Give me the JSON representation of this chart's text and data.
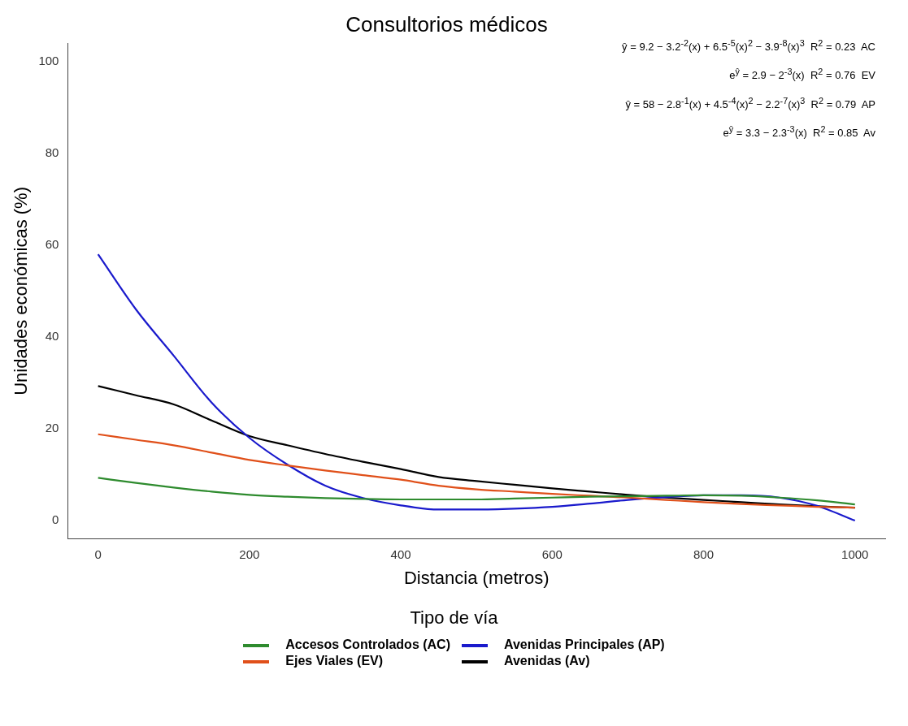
{
  "chart_data": {
    "type": "line",
    "title": "Consultorios médicos",
    "xlabel": "Distancia (metros)",
    "ylabel": "Unidades económicas (%)",
    "legend_title": "Tipo de vía",
    "legend": "bottom",
    "grid": false,
    "marker": "none",
    "line_style": "solid",
    "x": [
      0,
      50,
      100,
      150,
      200,
      250,
      300,
      350,
      400,
      450,
      500,
      550,
      600,
      650,
      700,
      750,
      800,
      850,
      900,
      950,
      1000
    ],
    "xlim": [
      -40,
      1040
    ],
    "xticks": [
      0,
      200,
      400,
      600,
      800,
      1000
    ],
    "ylim": [
      -4,
      104
    ],
    "yticks": [
      0,
      20,
      40,
      60,
      80,
      100
    ],
    "series": [
      {
        "name": "Accesos Controlados (AC)",
        "color": "#2e8b2e",
        "values": [
          9.3,
          8.2,
          7.2,
          6.3,
          5.6,
          5.2,
          4.9,
          4.7,
          4.6,
          4.6,
          4.6,
          4.8,
          5,
          5.2,
          5.3,
          5.4,
          5.5,
          5.4,
          5,
          4.4,
          3.5
        ]
      },
      {
        "name": "Ejes Viales (EV)",
        "color": "#e0501a",
        "values": [
          18.8,
          17.6,
          16.4,
          14.8,
          13.2,
          12,
          10.9,
          9.9,
          8.9,
          7.6,
          6.8,
          6.3,
          5.8,
          5.4,
          5,
          4.5,
          4,
          3.6,
          3.3,
          3,
          2.8
        ]
      },
      {
        "name": "Avenidas Principales (AP)",
        "color": "#1a1acc",
        "values": [
          58,
          46,
          35.9,
          25.7,
          18,
          12.2,
          7.6,
          4.9,
          3.3,
          2.4,
          2.4,
          2.6,
          3,
          3.7,
          4.5,
          5.1,
          5.5,
          5.5,
          5,
          3.2,
          0
        ]
      },
      {
        "name": "Avenidas (Av)",
        "color": "#000000",
        "values": [
          29.3,
          27.3,
          25.3,
          21.8,
          18.4,
          16.4,
          14.5,
          12.8,
          11.2,
          9.5,
          8.6,
          7.8,
          7,
          6.3,
          5.6,
          5,
          4.5,
          4,
          3.5,
          3.1,
          2.8
        ]
      }
    ],
    "annotations": [
      "ŷ = 9.2 − 3.2$^{-2}$(x) + 6.5$^{-5}$(x)$^{2}$ − 3.9$^{-8}$(x)$^{3}$  R$^{2}$ = 0.23  AC",
      "e$^{ŷ}$ = 2.9 − 2$^{-3}$(x)  R$^{2}$ = 0.76  EV",
      "ŷ = 58 − 2.8$^{-1}$(x) + 4.5$^{-4}$(x)$^{2}$ − 2.2$^{-7}$(x)$^{3}$  R$^{2}$ = 0.79  AP",
      "e$^{ŷ}$ = 3.3 − 2.3$^{-3}$(x)  R$^{2}$ = 0.85  Av"
    ]
  }
}
